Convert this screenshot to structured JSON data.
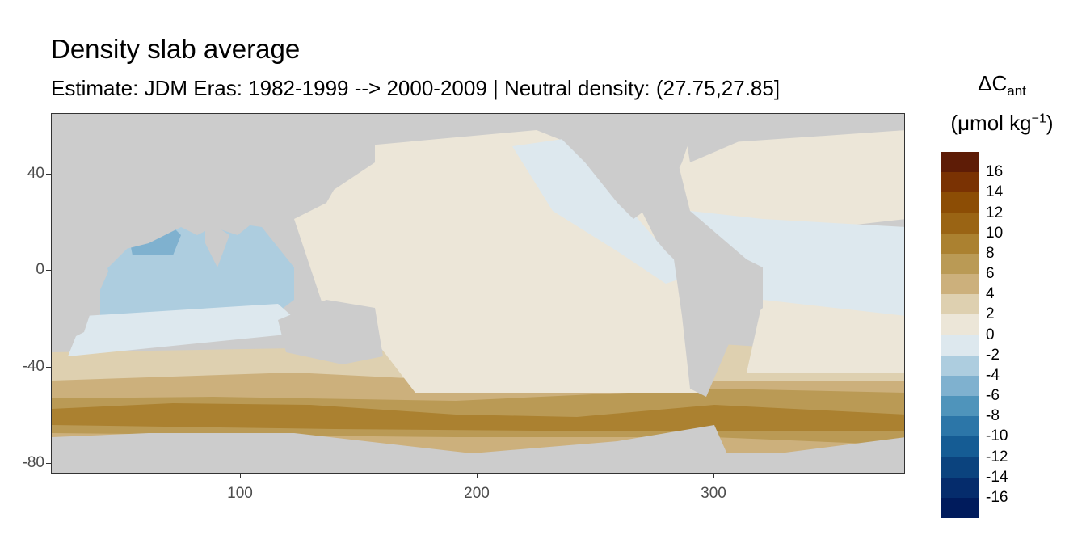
{
  "title": "Density slab average",
  "subtitle": "Estimate: JDM Eras: 1982-1999 --> 2000-2009 | Neutral density: (27.75,27.85]",
  "legend": {
    "title_symbol": "ΔC",
    "title_sub": "ant",
    "units_main": "(μmol kg",
    "units_sup": "−1",
    "units_close": ")",
    "labels": [
      "16",
      "14",
      "12",
      "10",
      "8",
      "6",
      "4",
      "2",
      "0",
      "-2",
      "-4",
      "-6",
      "-8",
      "-10",
      "-12",
      "-14",
      "-16"
    ],
    "colors": [
      "#5e1c06",
      "#7a3203",
      "#8c4d05",
      "#9a6414",
      "#ab8130",
      "#ba9a55",
      "#ccb07c",
      "#ded0b0",
      "#ece6d8",
      "#dde8ee",
      "#adcddf",
      "#7fb1cf",
      "#4f94bb",
      "#2c76a8",
      "#155c94",
      "#0b437e",
      "#052c6c",
      "#001b5c"
    ]
  },
  "axes": {
    "y_ticks": [
      "40",
      "0",
      "-40",
      "-80"
    ],
    "x_ticks": [
      "100",
      "200",
      "300"
    ],
    "xlim": [
      20,
      380
    ],
    "ylim": [
      -85,
      65
    ]
  },
  "map": {
    "land_color": "#cccccc",
    "missing_color": "#ffffff",
    "value_range": [
      -6,
      12
    ]
  }
}
